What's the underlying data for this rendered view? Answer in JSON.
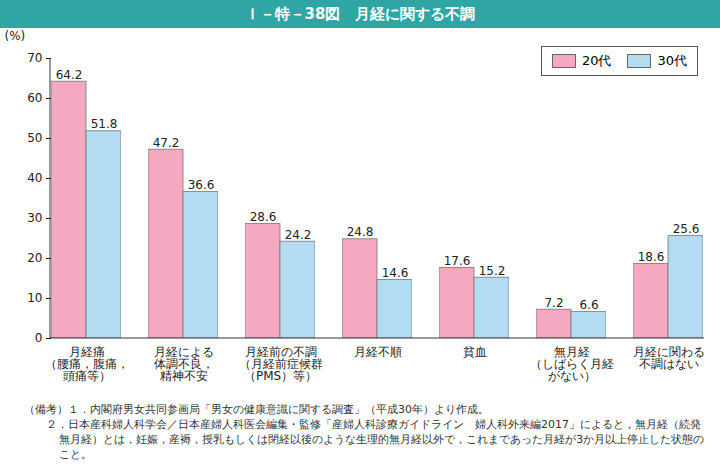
{
  "chart_data": {
    "type": "bar",
    "title": "Ｉ－特－38図　月経に関する不調",
    "y_label": "(%)",
    "categories": [
      "月経痛\n（腰痛，腹痛，\n頭痛等）",
      "月経による\n体調不良，\n精神不安",
      "月経前の不調\n（月経前症候群\n（PMS）等）",
      "月経不順",
      "貧血",
      "無月経\n（しばらく月経\nがない）",
      "月経に関わる\n不調はない"
    ],
    "series": [
      {
        "name": "20代",
        "color": "#f4a9c0",
        "values": [
          64.2,
          47.2,
          28.6,
          24.8,
          17.6,
          7.2,
          18.6
        ]
      },
      {
        "name": "30代",
        "color": "#b3dcf3",
        "values": [
          51.8,
          36.6,
          24.2,
          14.6,
          15.2,
          6.6,
          25.6
        ]
      }
    ],
    "ylim": [
      0,
      70
    ],
    "yticks": [
      0,
      10,
      20,
      30,
      40,
      50,
      60,
      70
    ],
    "grid": false,
    "legend": "top-right",
    "data_labels": true,
    "notes": [
      "（備考）１．内閣府男女共同参画局「男女の健康意識に関する調査」（平成30年）より作成。",
      "２．日本産科婦人科学会／日本産婦人科医会編集・監修「産婦人科診療ガイドライン　婦人科外来編2017」によると，無月経（続発無月経）とは，妊娠，産褥，授乳もしくは閉経以後のような生理的無月経以外で，これまであった月経が3か月以上停止した状態のこと。"
    ]
  }
}
